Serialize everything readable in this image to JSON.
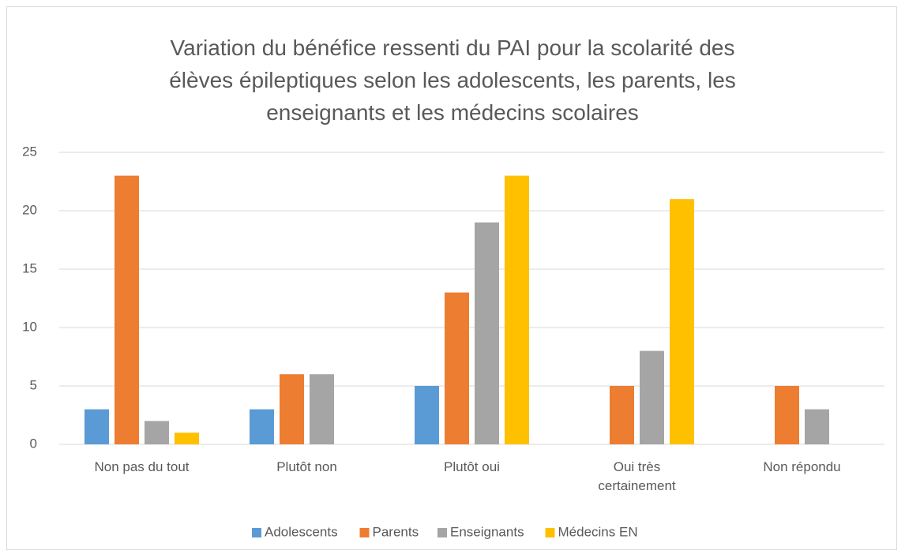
{
  "chart_data": {
    "type": "bar",
    "title": "Variation du bénéfice ressenti du PAI pour la scolarité des élèves épileptiques selon les adolescents, les parents, les enseignants et les médecins scolaires",
    "categories": [
      "Non pas du tout",
      "Plutôt non",
      "Plutôt oui",
      "Oui très certainement",
      "Non répondu"
    ],
    "series": [
      {
        "name": "Adolescents",
        "color": "#5b9bd5",
        "values": [
          3,
          3,
          5,
          0,
          0
        ]
      },
      {
        "name": "Parents",
        "color": "#ed7d31",
        "values": [
          23,
          6,
          13,
          5,
          5
        ]
      },
      {
        "name": "Enseignants",
        "color": "#a5a5a5",
        "values": [
          2,
          6,
          19,
          8,
          3
        ]
      },
      {
        "name": "Médecins EN",
        "color": "#ffc000",
        "values": [
          1,
          0,
          23,
          21,
          0
        ]
      }
    ],
    "ylim": [
      0,
      25
    ],
    "yticks": [
      0,
      5,
      10,
      15,
      20,
      25
    ],
    "grid": true,
    "legend": "bottom"
  }
}
